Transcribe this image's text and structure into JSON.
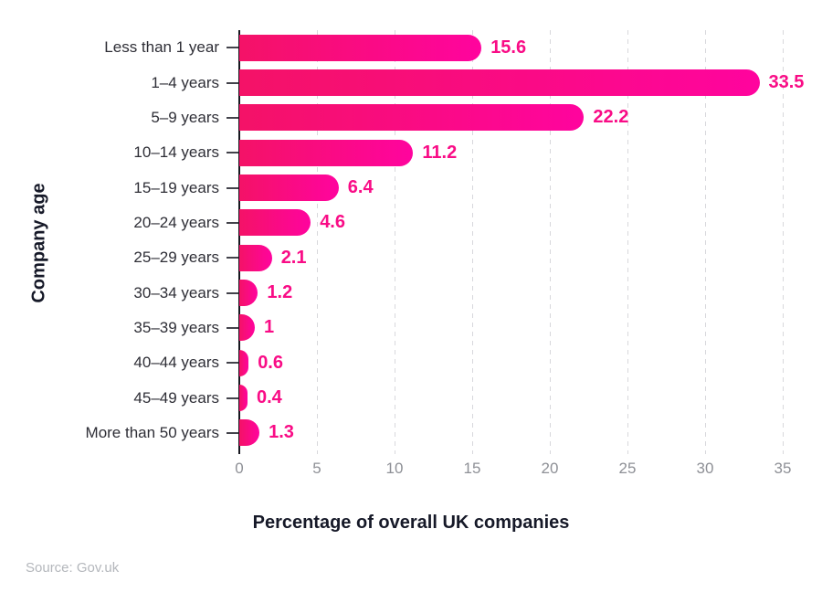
{
  "chart_data": {
    "type": "bar",
    "orientation": "horizontal",
    "title": "",
    "xlabel": "Percentage of overall UK companies",
    "ylabel": "Company age",
    "categories": [
      "Less than 1 year",
      "1–4 years",
      "5–9 years",
      "10–14 years",
      "15–19 years",
      "20–24 years",
      "25–29 years",
      "30–34 years",
      "35–39 years",
      "40–44 years",
      "45–49 years",
      "More than 50 years"
    ],
    "values": [
      15.6,
      33.5,
      22.2,
      11.2,
      6.4,
      4.6,
      2.1,
      1.2,
      1,
      0.6,
      0.4,
      1.3
    ],
    "value_labels": [
      "15.6",
      "33.5",
      "22.2",
      "11.2",
      "6.4",
      "4.6",
      "2.1",
      "1.2",
      "1",
      "0.6",
      "0.4",
      "1.3"
    ],
    "xlim": [
      0,
      35
    ],
    "xticks": [
      0,
      5,
      10,
      15,
      20,
      25,
      30,
      35
    ],
    "grid": "vertical-dashed",
    "legend": "none",
    "colors": {
      "bar_gradient_start": "#f41267",
      "bar_gradient_end": "#ff049e",
      "value_label": "#f90c86",
      "axis_line": "#16161e",
      "y_tick": "#43434b",
      "tick_label": "#8e9096",
      "category_label": "#2e2e36",
      "axis_title": "#161928",
      "gridline": "#d8d8dc",
      "background": "#ffffff"
    }
  },
  "footer": {
    "source": "Source: Gov.uk"
  }
}
